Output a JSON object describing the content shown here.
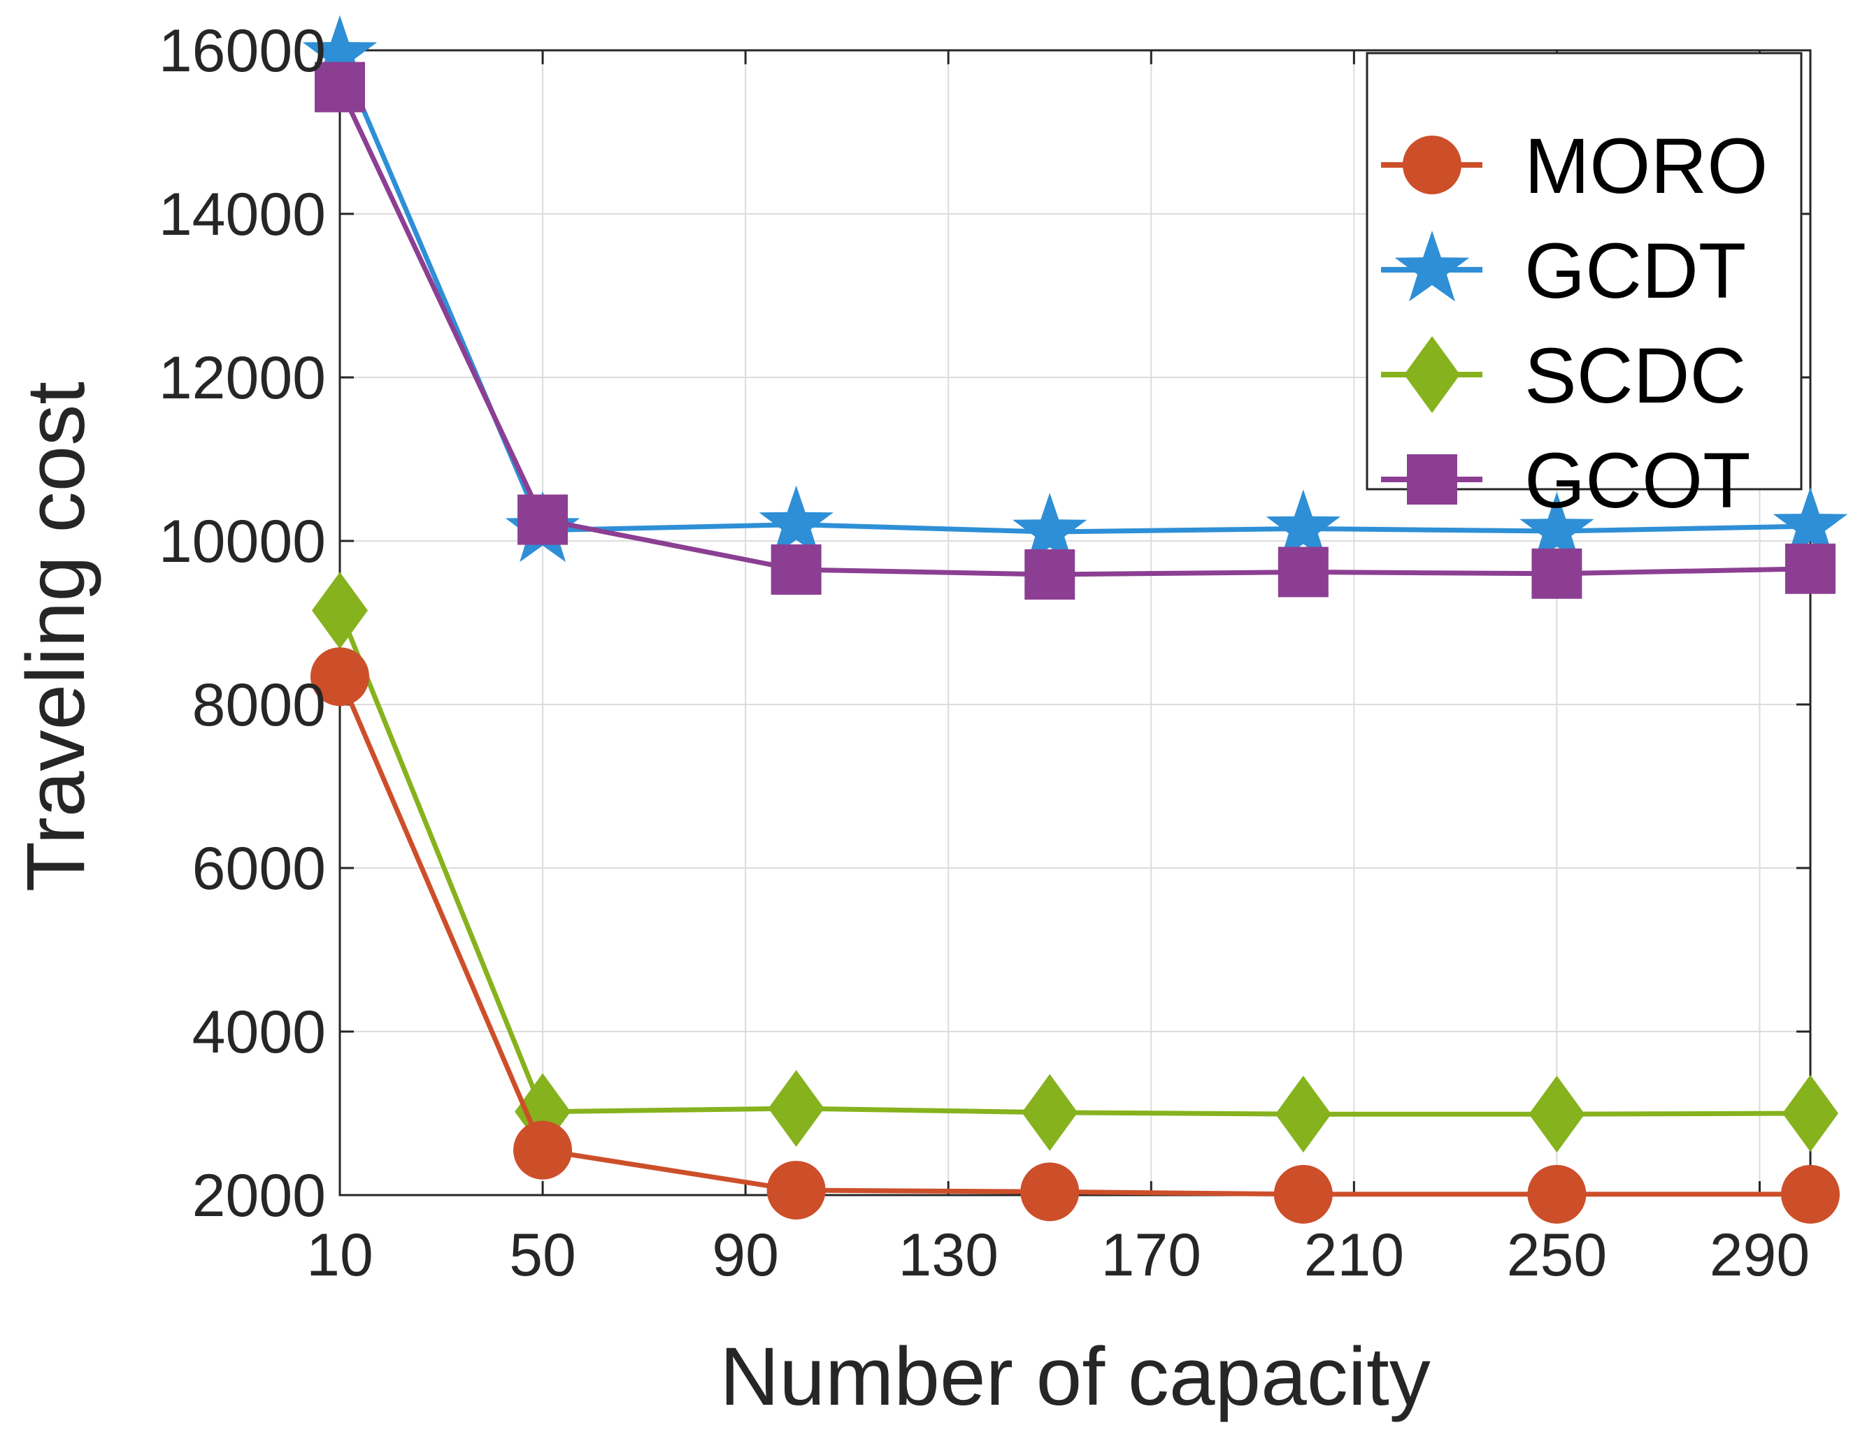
{
  "chart_data": {
    "type": "line",
    "title": "",
    "xlabel": "Number of capacity",
    "ylabel": "Traveling cost",
    "xlim": [
      10,
      300
    ],
    "ylim": [
      2000,
      16000
    ],
    "xticks": [
      10,
      50,
      90,
      130,
      170,
      210,
      250,
      290
    ],
    "yticks": [
      2000,
      4000,
      6000,
      8000,
      10000,
      12000,
      14000,
      16000
    ],
    "xtick_labels": [
      "10",
      "50",
      "90",
      "130",
      "170",
      "210",
      "250",
      "290"
    ],
    "ytick_labels": [
      "2000",
      "4000",
      "6000",
      "8000",
      "10000",
      "12000",
      "14000",
      "16000"
    ],
    "grid": true,
    "legend_position": "top-right",
    "x": [
      10,
      50,
      100,
      150,
      200,
      250,
      300
    ],
    "series": [
      {
        "name": "MORO",
        "marker": "circle",
        "color": "#cc4f2a",
        "values": [
          8340,
          2550,
          2060,
          2040,
          2010,
          2010,
          2010
        ]
      },
      {
        "name": "GCDT",
        "marker": "star",
        "color": "#2e8fd6",
        "values": [
          15950,
          10130,
          10200,
          10110,
          10150,
          10120,
          10180
        ]
      },
      {
        "name": "SCDC",
        "marker": "diamond",
        "color": "#86b21d",
        "values": [
          9150,
          3020,
          3060,
          3010,
          2990,
          2990,
          3000
        ]
      },
      {
        "name": "GCOT",
        "marker": "square",
        "color": "#8c3f92",
        "values": [
          15550,
          10260,
          9650,
          9590,
          9620,
          9600,
          9660
        ]
      }
    ]
  }
}
